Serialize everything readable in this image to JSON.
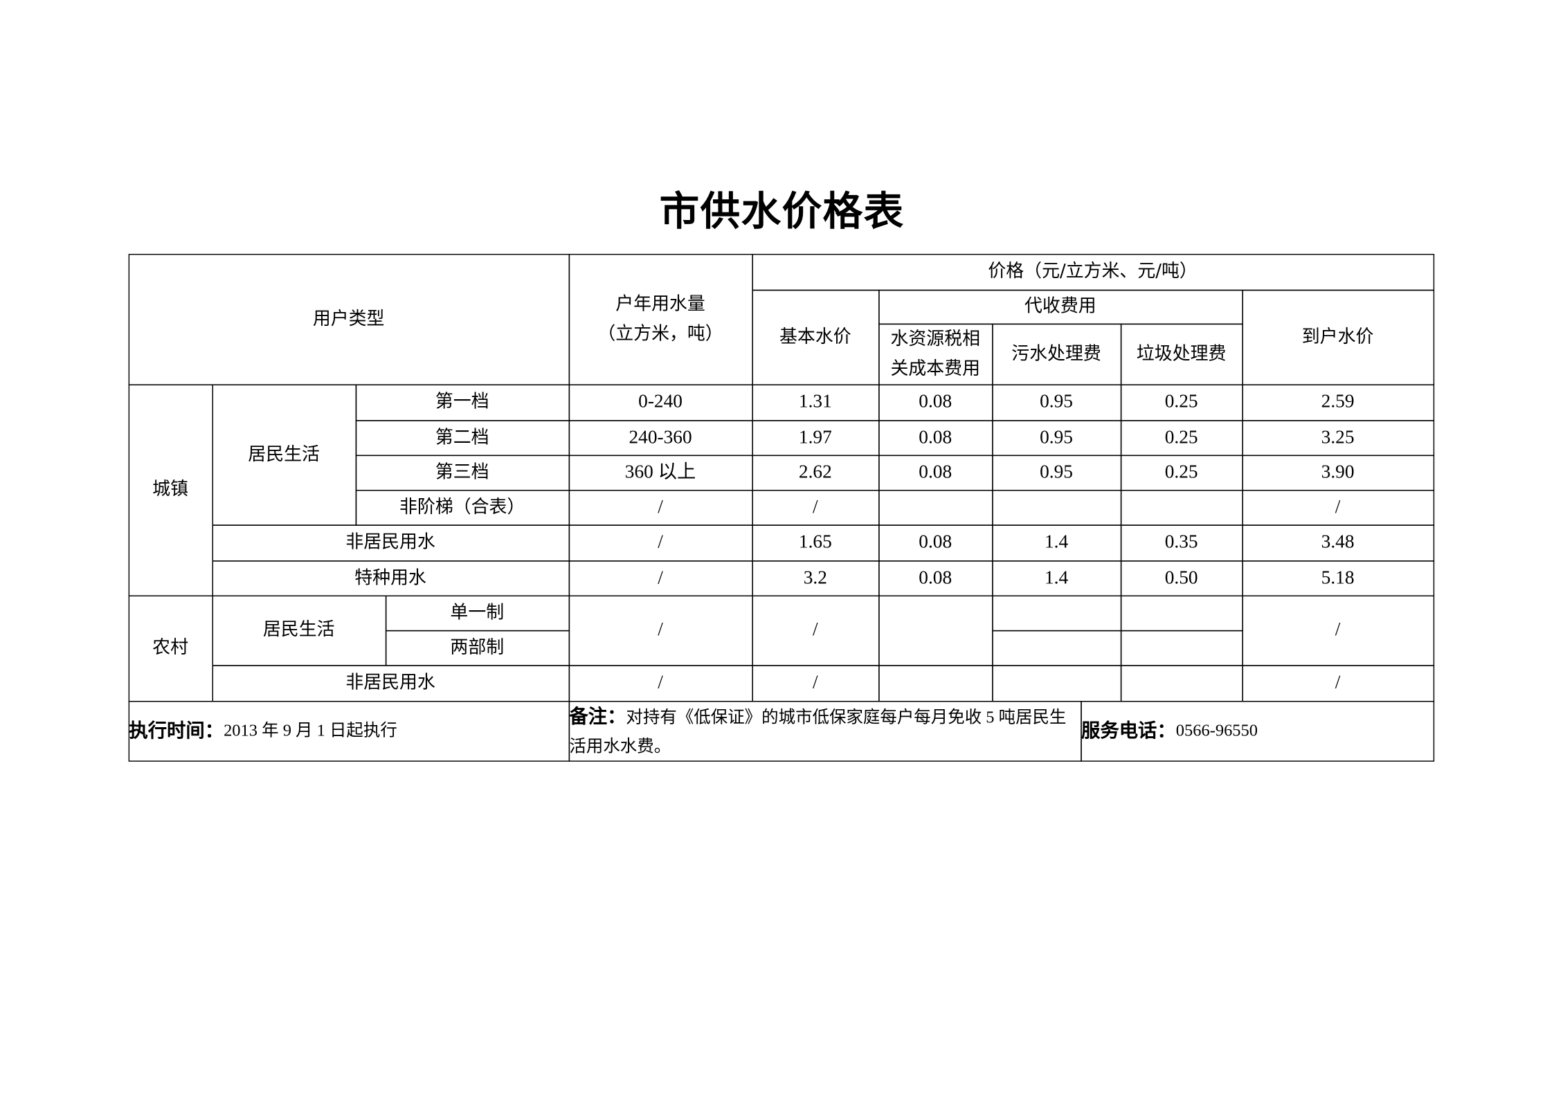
{
  "title": "市供水价格表",
  "header": {
    "user_type": "用户类型",
    "annual_volume": "户年用水量\n（立方米，吨）",
    "price": "价格（元/立方米、元/吨）",
    "base_price": "基本水价",
    "collected_fees": "代收费用",
    "water_resource_fee": "水资源税相\n关成本费用",
    "sewage_fee": "污水处理费",
    "garbage_fee": "垃圾处理费",
    "household_price": "到户水价"
  },
  "town": {
    "label": "城镇",
    "residential": "居民生活",
    "rows": [
      {
        "type": "第一档",
        "volume": "0-240",
        "base": "1.31",
        "resource": "0.08",
        "sewage": "0.95",
        "garbage": "0.25",
        "total": "2.59"
      },
      {
        "type": "第二档",
        "volume": "240-360",
        "base": "1.97",
        "resource": "0.08",
        "sewage": "0.95",
        "garbage": "0.25",
        "total": "3.25"
      },
      {
        "type": "第三档",
        "volume": "360 以上",
        "base": "2.62",
        "resource": "0.08",
        "sewage": "0.95",
        "garbage": "0.25",
        "total": "3.90"
      },
      {
        "type": "非阶梯（合表）",
        "volume": "/",
        "base": "/",
        "resource": "",
        "sewage": "",
        "garbage": "",
        "total": "/"
      },
      {
        "type": "非居民用水",
        "volume": "/",
        "base": "1.65",
        "resource": "0.08",
        "sewage": "1.4",
        "garbage": "0.35",
        "total": "3.48"
      },
      {
        "type": "特种用水",
        "volume": "/",
        "base": "3.2",
        "resource": "0.08",
        "sewage": "1.4",
        "garbage": "0.50",
        "total": "5.18"
      }
    ]
  },
  "rural": {
    "label": "农村",
    "residential": "居民生活",
    "single": "单一制",
    "two_part": "两部制",
    "res_volume": "/",
    "res_base": "/",
    "res_total": "/",
    "nonres": {
      "type": "非居民用水",
      "volume": "/",
      "base": "/",
      "total": "/"
    }
  },
  "footer": {
    "effective_label": "执行时间：",
    "effective_value": "2013 年 9 月 1 日起执行",
    "note_label": "备注：",
    "note_value": "对持有《低保证》的城市低保家庭每户每月免收 5 吨居民生活用水水费。",
    "phone_label": "服务电话：",
    "phone_value": "0566-96550"
  }
}
